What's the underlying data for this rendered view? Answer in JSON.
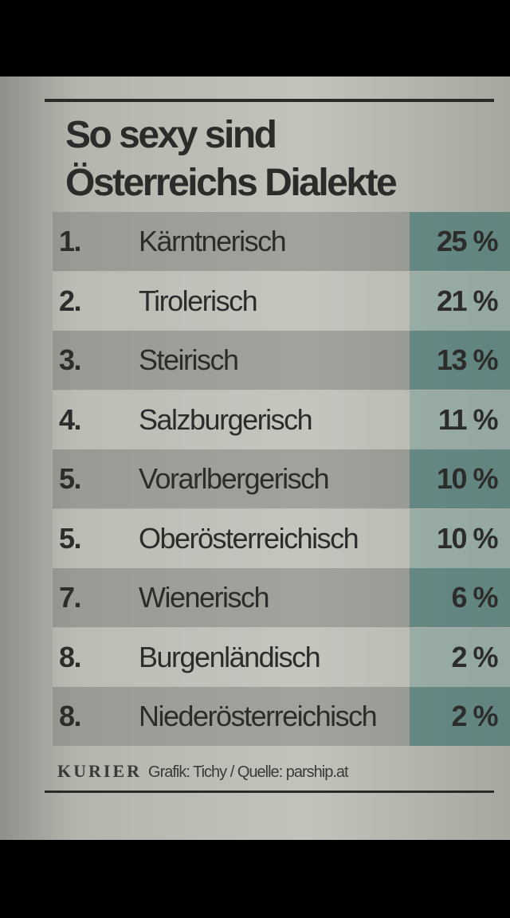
{
  "header": {
    "title_lines": [
      "So sexy sind",
      "Österreichs Dialekte"
    ]
  },
  "table": {
    "rows": [
      [
        "1.",
        "Kärntnerisch",
        "25 %"
      ],
      [
        "2.",
        "Tirolerisch",
        "21 %"
      ],
      [
        "3.",
        "Steirisch",
        "13 %"
      ],
      [
        "4.",
        "Salzburgerisch",
        "11 %"
      ],
      [
        "5.",
        "Vorarlbergerisch",
        "10 %"
      ],
      [
        "5.",
        "Oberösterreichisch",
        "10 %"
      ],
      [
        "7.",
        "Wienerisch",
        "6 %"
      ],
      [
        "8.",
        "Burgenländisch",
        "2 %"
      ],
      [
        "8.",
        "Niederösterreichisch",
        "2 %"
      ]
    ]
  },
  "footer": {
    "brand": "KURIER",
    "credit": "Grafik: Tichy / Quelle: parship.at"
  }
}
